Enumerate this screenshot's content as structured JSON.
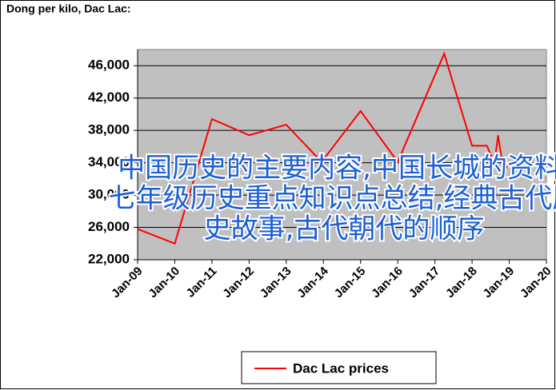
{
  "chart_data": {
    "type": "line",
    "title": "Dong per kilo, Dac Lac:",
    "x": [
      2009.0,
      2010.0,
      2011.0,
      2012.0,
      2013.0,
      2013.95,
      2015.0,
      2016.0,
      2017.25,
      2018.0,
      2018.4,
      2018.6,
      2018.7,
      2018.85,
      2019.0
    ],
    "series": [
      {
        "name": "Dac Lac prices",
        "color": "#ff0000",
        "values": [
          25800,
          24000,
          39400,
          37400,
          38700,
          34100,
          40400,
          34100,
          47500,
          36100,
          36100,
          33900,
          37400,
          32900,
          33900
        ]
      }
    ],
    "xlim": [
      2009,
      2020
    ],
    "xticks": [
      {
        "value": 2009,
        "label": "Jan-09"
      },
      {
        "value": 2010,
        "label": "Jan-10"
      },
      {
        "value": 2011,
        "label": "Jan-11"
      },
      {
        "value": 2012,
        "label": "Jan-12"
      },
      {
        "value": 2013,
        "label": "Jan-13"
      },
      {
        "value": 2014,
        "label": "Jan-14"
      },
      {
        "value": 2015,
        "label": "Jan-15"
      },
      {
        "value": 2016,
        "label": "Jan-16"
      },
      {
        "value": 2017,
        "label": "Jan-17"
      },
      {
        "value": 2018,
        "label": "Jan-18"
      },
      {
        "value": 2019,
        "label": "Jan-19"
      },
      {
        "value": 2020,
        "label": "Jan-20"
      }
    ],
    "ylim": [
      22000,
      48000
    ],
    "yticks": [
      {
        "value": 22000,
        "label": "22,000"
      },
      {
        "value": 26000,
        "label": "26,000"
      },
      {
        "value": 30000,
        "label": "30,000"
      },
      {
        "value": 34000,
        "label": "34,000"
      },
      {
        "value": 38000,
        "label": "38,000"
      },
      {
        "value": 42000,
        "label": "42,000"
      },
      {
        "value": 46000,
        "label": "46,000"
      }
    ],
    "grid": true,
    "legend": "bottom"
  },
  "watermark": [
    "中国历史的主要内容,中国长城的资料,",
    "七年级历史重点知识点总结,经典古代历",
    "史故事,古代朝代的顺序"
  ]
}
